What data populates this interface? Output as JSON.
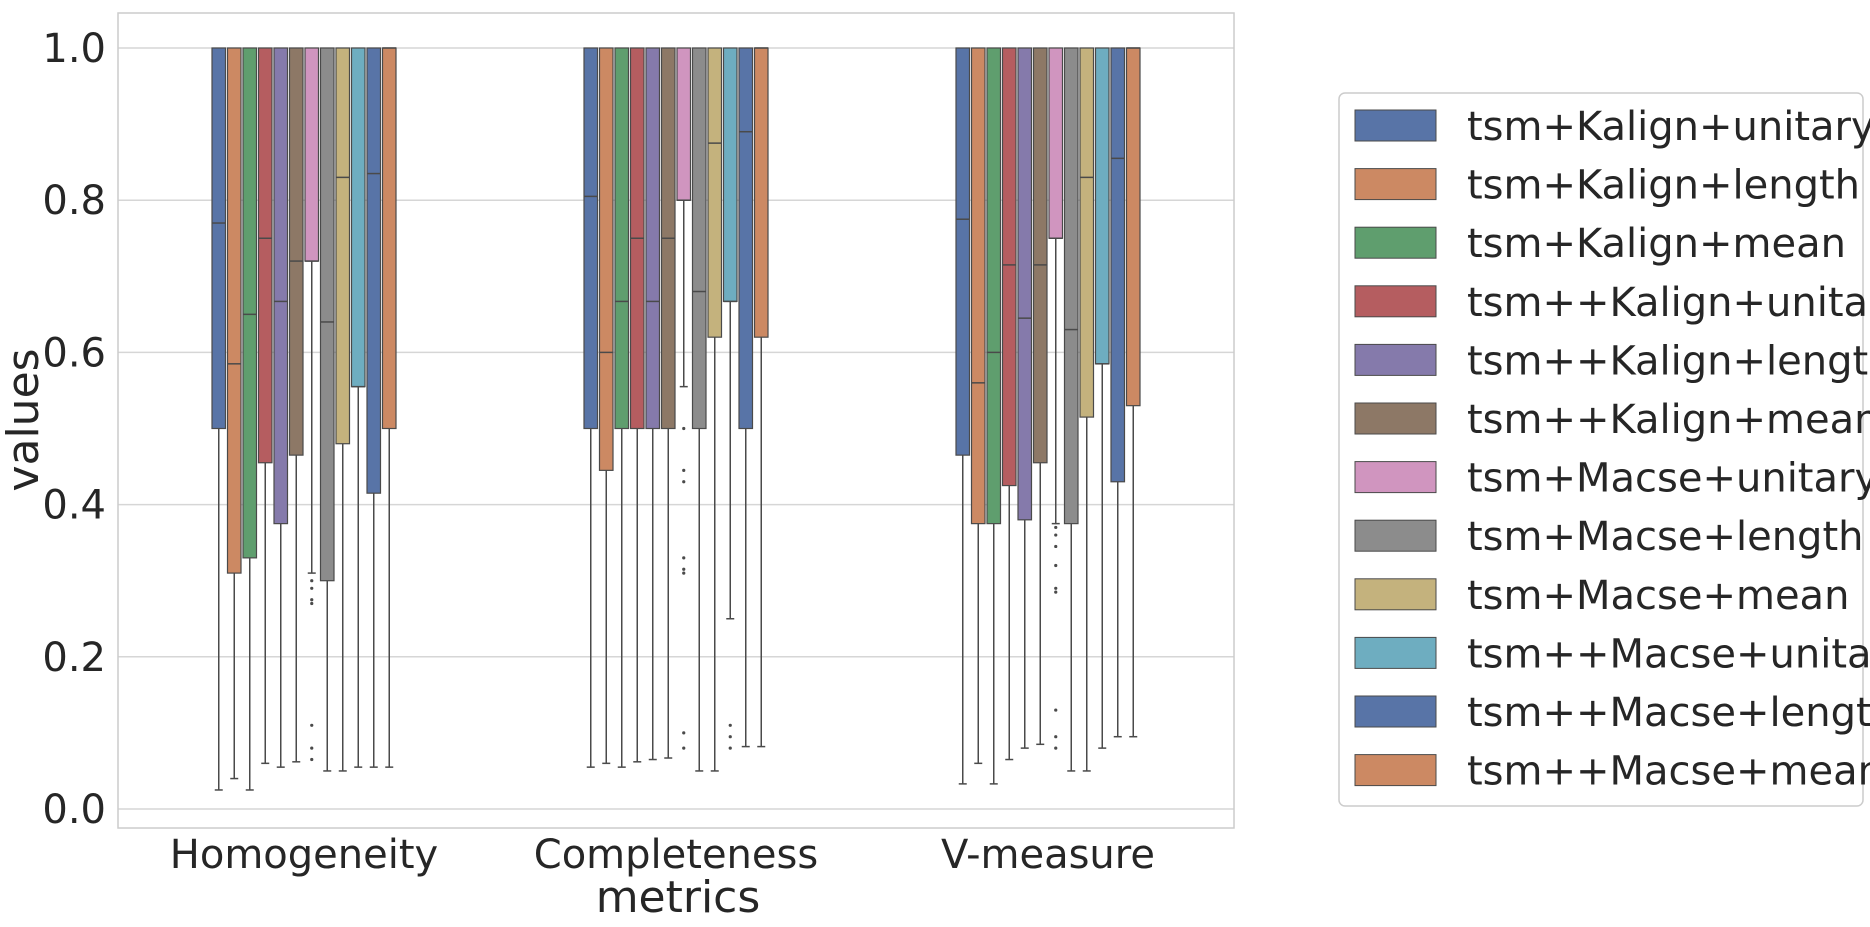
{
  "chart_data": {
    "type": "box",
    "title": "",
    "xlabel": "metrics",
    "ylabel": "values",
    "ylim": [
      -0.02,
      1.05
    ],
    "yticks": [
      "0.0",
      "0.2",
      "0.4",
      "0.6",
      "0.8",
      "1.0"
    ],
    "grid": "horizontal",
    "legend_position": "right",
    "categories": [
      "Homogeneity",
      "Completeness",
      "V-measure"
    ],
    "series": [
      {
        "name": "tsm+Kalign+unitary",
        "color": "#5874a7",
        "boxes": [
          {
            "whislo": 0.025,
            "q1": 0.5,
            "med": 0.77,
            "q3": 1.0,
            "whishi": 1.0,
            "fliers": []
          },
          {
            "whislo": 0.055,
            "q1": 0.5,
            "med": 0.805,
            "q3": 1.0,
            "whishi": 1.0,
            "fliers": []
          },
          {
            "whislo": 0.033,
            "q1": 0.465,
            "med": 0.775,
            "q3": 1.0,
            "whishi": 1.0,
            "fliers": []
          }
        ]
      },
      {
        "name": "tsm+Kalign+length",
        "color": "#cc8963",
        "boxes": [
          {
            "whislo": 0.04,
            "q1": 0.31,
            "med": 0.585,
            "q3": 1.0,
            "whishi": 1.0,
            "fliers": []
          },
          {
            "whislo": 0.06,
            "q1": 0.445,
            "med": 0.6,
            "q3": 1.0,
            "whishi": 1.0,
            "fliers": []
          },
          {
            "whislo": 0.06,
            "q1": 0.375,
            "med": 0.56,
            "q3": 1.0,
            "whishi": 1.0,
            "fliers": []
          }
        ]
      },
      {
        "name": "tsm+Kalign+mean",
        "color": "#5f9e6e",
        "boxes": [
          {
            "whislo": 0.025,
            "q1": 0.33,
            "med": 0.65,
            "q3": 1.0,
            "whishi": 1.0,
            "fliers": []
          },
          {
            "whislo": 0.055,
            "q1": 0.5,
            "med": 0.667,
            "q3": 1.0,
            "whishi": 1.0,
            "fliers": []
          },
          {
            "whislo": 0.033,
            "q1": 0.375,
            "med": 0.6,
            "q3": 1.0,
            "whishi": 1.0,
            "fliers": []
          }
        ]
      },
      {
        "name": "tsm++Kalign+unitary",
        "color": "#b55d60",
        "boxes": [
          {
            "whislo": 0.06,
            "q1": 0.455,
            "med": 0.75,
            "q3": 1.0,
            "whishi": 1.0,
            "fliers": []
          },
          {
            "whislo": 0.062,
            "q1": 0.5,
            "med": 0.75,
            "q3": 1.0,
            "whishi": 1.0,
            "fliers": []
          },
          {
            "whislo": 0.065,
            "q1": 0.425,
            "med": 0.715,
            "q3": 1.0,
            "whishi": 1.0,
            "fliers": []
          }
        ]
      },
      {
        "name": "tsm++Kalign+length",
        "color": "#857aab",
        "boxes": [
          {
            "whislo": 0.055,
            "q1": 0.375,
            "med": 0.667,
            "q3": 1.0,
            "whishi": 1.0,
            "fliers": []
          },
          {
            "whislo": 0.065,
            "q1": 0.5,
            "med": 0.667,
            "q3": 1.0,
            "whishi": 1.0,
            "fliers": []
          },
          {
            "whislo": 0.08,
            "q1": 0.38,
            "med": 0.645,
            "q3": 1.0,
            "whishi": 1.0,
            "fliers": []
          }
        ]
      },
      {
        "name": "tsm++Kalign+mean",
        "color": "#8d7866",
        "boxes": [
          {
            "whislo": 0.062,
            "q1": 0.465,
            "med": 0.72,
            "q3": 1.0,
            "whishi": 1.0,
            "fliers": []
          },
          {
            "whislo": 0.067,
            "q1": 0.5,
            "med": 0.75,
            "q3": 1.0,
            "whishi": 1.0,
            "fliers": []
          },
          {
            "whislo": 0.085,
            "q1": 0.455,
            "med": 0.715,
            "q3": 1.0,
            "whishi": 1.0,
            "fliers": []
          }
        ]
      },
      {
        "name": "tsm+Macse+unitary",
        "color": "#d095bf",
        "boxes": [
          {
            "whislo": 0.31,
            "q1": 0.72,
            "med": 0.72,
            "q3": 1.0,
            "whishi": 1.0,
            "fliers": [
              0.3,
              0.29,
              0.275,
              0.27,
              0.11,
              0.08,
              0.065
            ]
          },
          {
            "whislo": 0.555,
            "q1": 0.8,
            "med": 0.8,
            "q3": 1.0,
            "whishi": 1.0,
            "fliers": [
              0.5,
              0.445,
              0.43,
              0.33,
              0.315,
              0.31,
              0.1,
              0.08
            ]
          },
          {
            "whislo": 0.375,
            "q1": 0.75,
            "med": 0.75,
            "q3": 1.0,
            "whishi": 1.0,
            "fliers": [
              0.37,
              0.36,
              0.345,
              0.32,
              0.29,
              0.285,
              0.13,
              0.095,
              0.08
            ]
          }
        ]
      },
      {
        "name": "tsm+Macse+length",
        "color": "#8c8c8c",
        "boxes": [
          {
            "whislo": 0.05,
            "q1": 0.3,
            "med": 0.64,
            "q3": 1.0,
            "whishi": 1.0,
            "fliers": []
          },
          {
            "whislo": 0.05,
            "q1": 0.5,
            "med": 0.68,
            "q3": 1.0,
            "whishi": 1.0,
            "fliers": []
          },
          {
            "whislo": 0.05,
            "q1": 0.375,
            "med": 0.63,
            "q3": 1.0,
            "whishi": 1.0,
            "fliers": []
          }
        ]
      },
      {
        "name": "tsm+Macse+mean",
        "color": "#c4b27d",
        "boxes": [
          {
            "whislo": 0.05,
            "q1": 0.48,
            "med": 0.83,
            "q3": 1.0,
            "whishi": 1.0,
            "fliers": []
          },
          {
            "whislo": 0.05,
            "q1": 0.62,
            "med": 0.875,
            "q3": 1.0,
            "whishi": 1.0,
            "fliers": []
          },
          {
            "whislo": 0.05,
            "q1": 0.515,
            "med": 0.83,
            "q3": 1.0,
            "whishi": 1.0,
            "fliers": []
          }
        ]
      },
      {
        "name": "tsm++Macse+unitary",
        "color": "#6eadc0",
        "boxes": [
          {
            "whislo": 0.055,
            "q1": 0.555,
            "med": 0.555,
            "q3": 1.0,
            "whishi": 1.0,
            "fliers": []
          },
          {
            "whislo": 0.25,
            "q1": 0.667,
            "med": 0.667,
            "q3": 1.0,
            "whishi": 1.0,
            "fliers": [
              0.11,
              0.095,
              0.08
            ]
          },
          {
            "whislo": 0.08,
            "q1": 0.585,
            "med": 0.585,
            "q3": 1.0,
            "whishi": 1.0,
            "fliers": []
          }
        ]
      },
      {
        "name": "tsm++Macse+length",
        "color": "#5874a7",
        "boxes": [
          {
            "whislo": 0.055,
            "q1": 0.415,
            "med": 0.835,
            "q3": 1.0,
            "whishi": 1.0,
            "fliers": []
          },
          {
            "whislo": 0.082,
            "q1": 0.5,
            "med": 0.89,
            "q3": 1.0,
            "whishi": 1.0,
            "fliers": []
          },
          {
            "whislo": 0.095,
            "q1": 0.43,
            "med": 0.855,
            "q3": 1.0,
            "whishi": 1.0,
            "fliers": []
          }
        ]
      },
      {
        "name": "tsm++Macse+mean",
        "color": "#cc8963",
        "boxes": [
          {
            "whislo": 0.055,
            "q1": 0.5,
            "med": 1.0,
            "q3": 1.0,
            "whishi": 1.0,
            "fliers": []
          },
          {
            "whislo": 0.082,
            "q1": 0.62,
            "med": 1.0,
            "q3": 1.0,
            "whishi": 1.0,
            "fliers": []
          },
          {
            "whislo": 0.095,
            "q1": 0.53,
            "med": 1.0,
            "q3": 1.0,
            "whishi": 1.0,
            "fliers": []
          }
        ]
      }
    ]
  }
}
